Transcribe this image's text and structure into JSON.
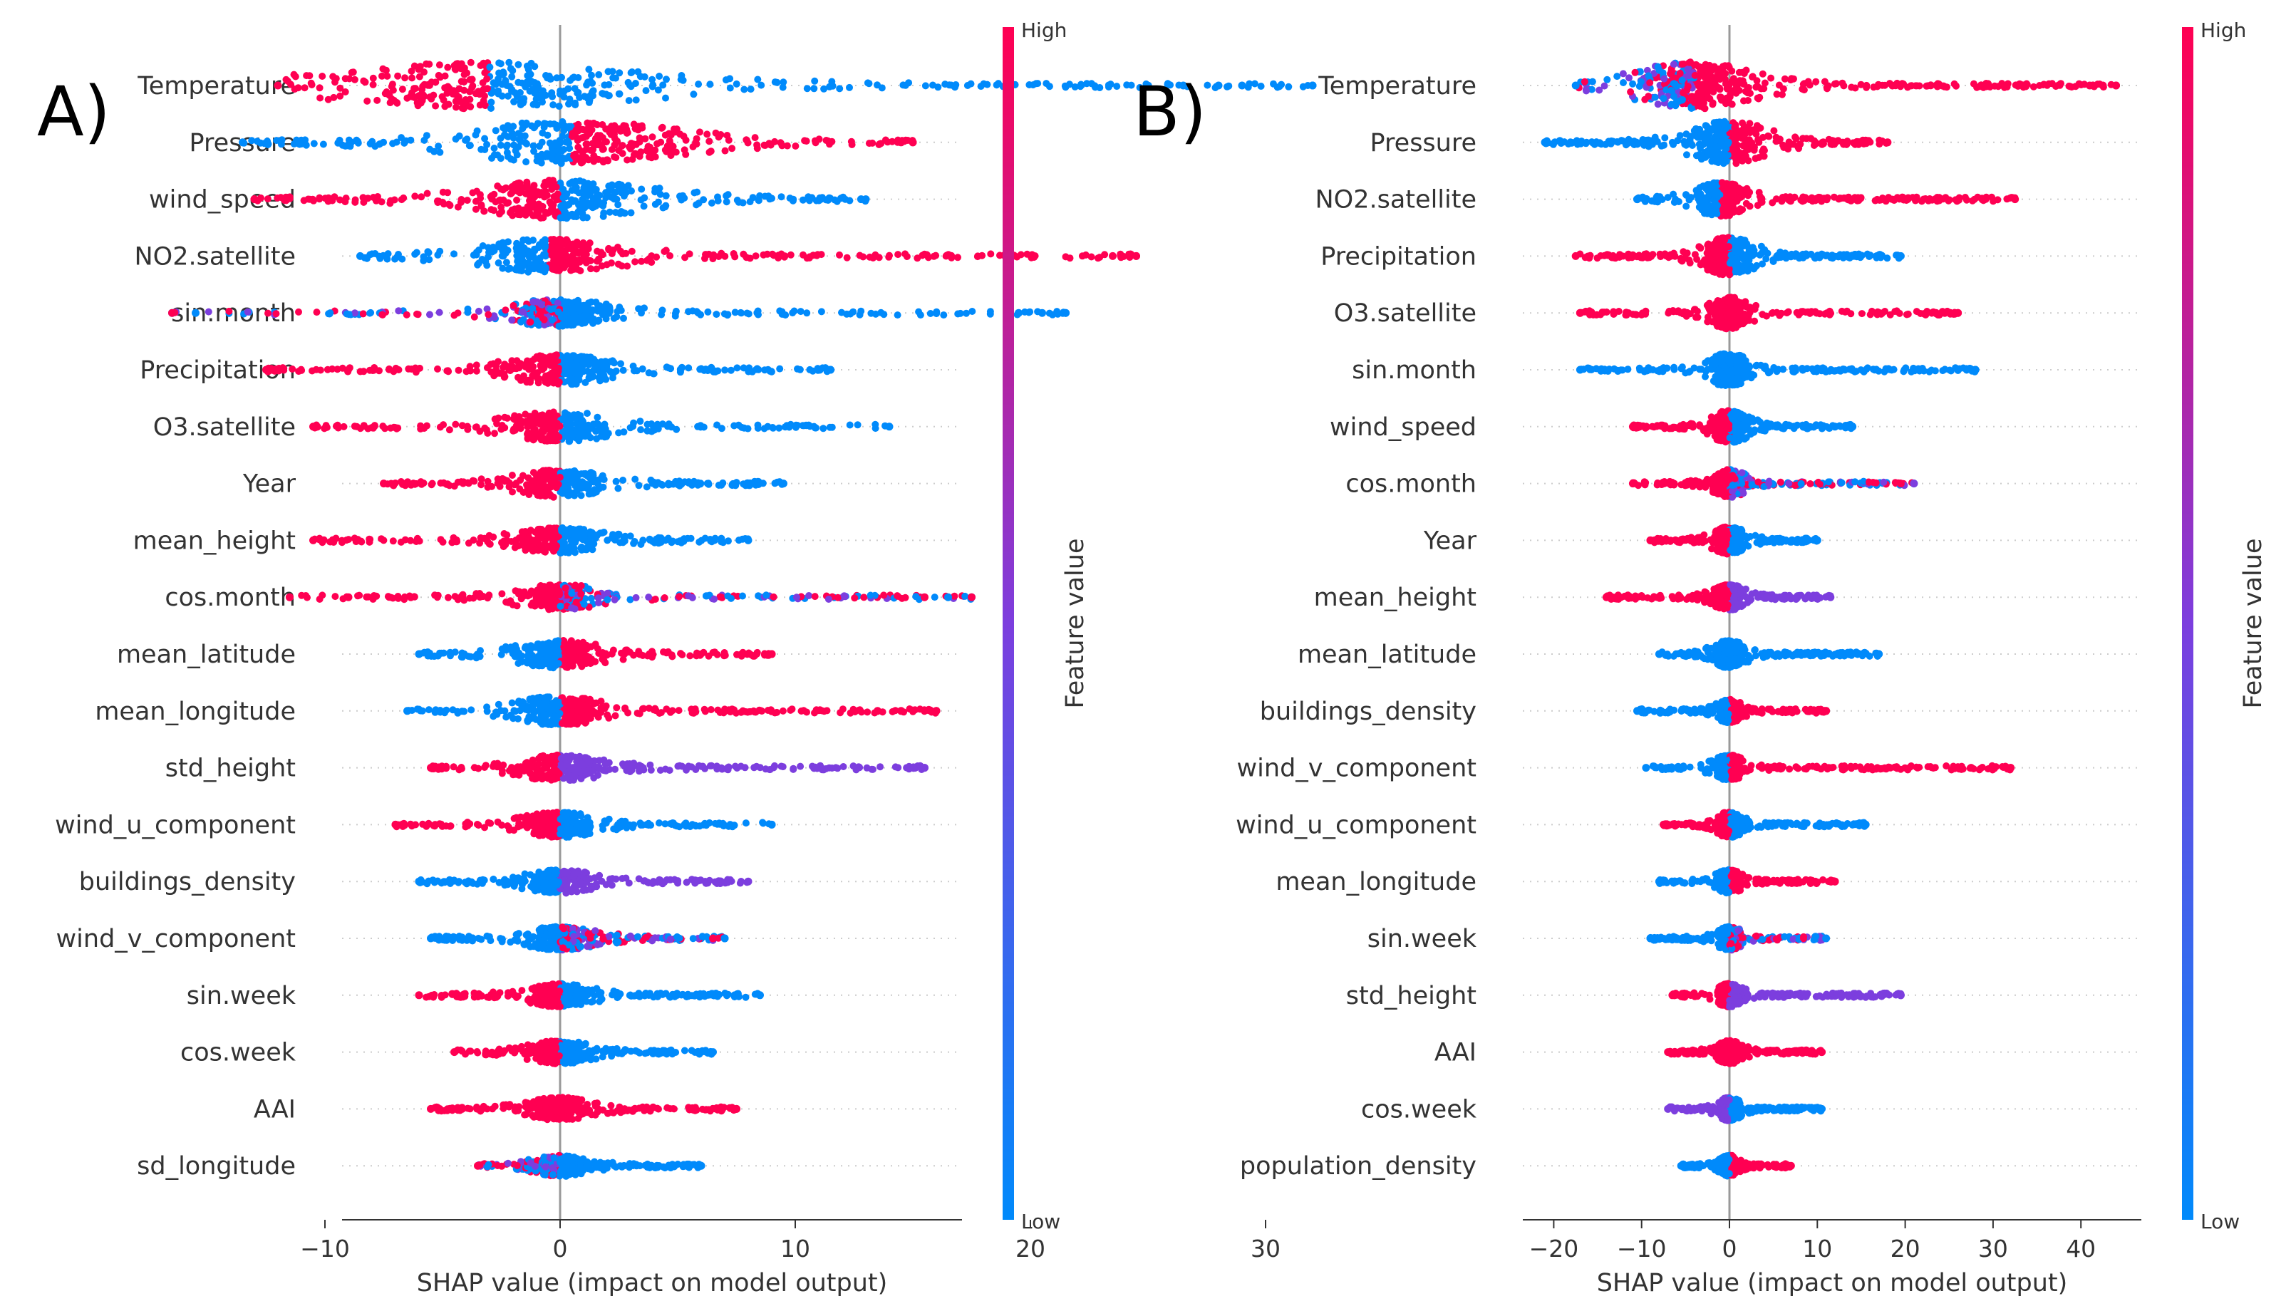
{
  "colors": {
    "low": "#008afb",
    "mid": "#7c3ede",
    "high": "#ff0052",
    "axis": "#333333",
    "zero_line": "#999999",
    "row_guide": "#cccccc"
  },
  "chart_data": [
    {
      "type": "scatter",
      "subtype": "shap_beeswarm",
      "panel_label": "A)",
      "xlabel": "SHAP value (impact on model output)",
      "xticks": [
        -10,
        0,
        10,
        20,
        30
      ],
      "xtick_labels": [
        "−10",
        "0",
        "10",
        "20",
        "30"
      ],
      "xlim": [
        -19,
        34.5
      ],
      "colorbar": {
        "label": "Feature value",
        "high": "High",
        "low": "Low"
      },
      "features": [
        {
          "name": "Temperature",
          "min": -12,
          "max": 32,
          "spread": 9,
          "center": -3,
          "wide": 1.0,
          "right_color": "low",
          "left_color": "high",
          "right_outliers": [
            26.5,
            28,
            29,
            32
          ]
        },
        {
          "name": "Pressure",
          "min": -13.5,
          "max": 15,
          "spread": 6,
          "center": 0.5,
          "wide": 0.9,
          "right_color": "high",
          "left_color": "low",
          "right_outliers": [
            14.5,
            15
          ]
        },
        {
          "name": "wind_speed",
          "min": -13,
          "max": 13,
          "spread": 5,
          "center": 0,
          "wide": 0.8,
          "right_color": "low",
          "left_color": "high",
          "right_outliers": [
            12.8
          ],
          "left_outliers": [
            -13
          ]
        },
        {
          "name": "NO2.satellite",
          "min": -8.5,
          "max": 24.5,
          "spread": 4,
          "center": -0.5,
          "wide": 0.7,
          "right_color": "high",
          "left_color": "low",
          "right_outliers": [
            23.5,
            24.5
          ]
        },
        {
          "name": "sin.month",
          "min": -16.5,
          "max": 21.5,
          "spread": 3,
          "center": 0,
          "wide": 0.55,
          "right_color": "low",
          "left_color": "mix",
          "right_outliers": [
            19.5,
            20.5,
            21.5
          ],
          "left_outliers": [
            -15.5,
            -16.5
          ]
        },
        {
          "name": "Precipitation",
          "min": -12.5,
          "max": 11.5,
          "spread": 3,
          "center": 0,
          "wide": 0.6,
          "right_color": "low",
          "left_color": "high",
          "right_outliers": [
            11.5
          ]
        },
        {
          "name": "O3.satellite",
          "min": -10.5,
          "max": 14,
          "spread": 3,
          "center": 0,
          "wide": 0.6,
          "right_color": "low",
          "left_color": "high",
          "right_outliers": []
        },
        {
          "name": "Year",
          "min": -7.5,
          "max": 9.5,
          "spread": 2.5,
          "center": 0,
          "wide": 0.55,
          "right_color": "low",
          "left_color": "high",
          "right_outliers": []
        },
        {
          "name": "mean_height",
          "min": -10.5,
          "max": 8,
          "spread": 2.5,
          "center": 0,
          "wide": 0.5,
          "right_color": "low",
          "left_color": "high",
          "right_outliers": []
        },
        {
          "name": "cos.month",
          "min": -11.5,
          "max": 17.5,
          "spread": 2.5,
          "center": 0,
          "wide": 0.5,
          "right_color": "mix",
          "left_color": "high",
          "right_outliers": [
            15.5,
            16.5,
            17.5
          ],
          "left_outliers": [
            -9,
            -11.5
          ]
        },
        {
          "name": "mean_latitude",
          "min": -6,
          "max": 9,
          "spread": 2.5,
          "center": 0,
          "wide": 0.55,
          "right_color": "high",
          "left_color": "low",
          "right_outliers": [
            9
          ]
        },
        {
          "name": "mean_longitude",
          "min": -6.5,
          "max": 16,
          "spread": 2.5,
          "center": 0,
          "wide": 0.6,
          "right_color": "high",
          "left_color": "low",
          "right_outliers": [
            12.5,
            13.5,
            14.5,
            16
          ]
        },
        {
          "name": "std_height",
          "min": -5.5,
          "max": 15.5,
          "spread": 2.5,
          "center": 0,
          "wide": 0.5,
          "right_color": "mid",
          "left_color": "high",
          "right_outliers": [
            15.5
          ]
        },
        {
          "name": "wind_u_component",
          "min": -7,
          "max": 9,
          "spread": 2,
          "center": 0,
          "wide": 0.5,
          "right_color": "low",
          "left_color": "high",
          "right_outliers": [
            9
          ],
          "left_outliers": [
            -7
          ]
        },
        {
          "name": "buildings_density",
          "min": -6,
          "max": 8,
          "spread": 2,
          "center": 0,
          "wide": 0.45,
          "right_color": "mid",
          "left_color": "low",
          "right_outliers": []
        },
        {
          "name": "wind_v_component",
          "min": -5.5,
          "max": 7,
          "spread": 2,
          "center": 0,
          "wide": 0.45,
          "right_color": "mix",
          "left_color": "low",
          "right_outliers": [
            6.5,
            7
          ]
        },
        {
          "name": "sin.week",
          "min": -6,
          "max": 8.5,
          "spread": 1.8,
          "center": 0,
          "wide": 0.45,
          "right_color": "low",
          "left_color": "high",
          "right_outliers": []
        },
        {
          "name": "cos.week",
          "min": -4.5,
          "max": 6.5,
          "spread": 1.8,
          "center": 0,
          "wide": 0.45,
          "right_color": "low",
          "left_color": "high",
          "right_outliers": []
        },
        {
          "name": "AAI",
          "min": -5.5,
          "max": 7.5,
          "spread": 1.8,
          "center": 0,
          "wide": 0.45,
          "right_color": "high",
          "left_color": "high",
          "right_outliers": [
            7.5
          ]
        },
        {
          "name": "sd_longitude",
          "min": -3.5,
          "max": 6,
          "spread": 1.5,
          "center": 0,
          "wide": 0.4,
          "right_color": "low",
          "left_color": "mix",
          "right_outliers": []
        }
      ]
    },
    {
      "type": "scatter",
      "subtype": "shap_beeswarm",
      "panel_label": "B)",
      "xlabel": "SHAP value (impact on model output)",
      "xticks": [
        -20,
        -10,
        0,
        10,
        20,
        30,
        40
      ],
      "xtick_labels": [
        "−20",
        "−10",
        "0",
        "10",
        "20",
        "30",
        "40"
      ],
      "xlim": [
        -24,
        47
      ],
      "colorbar": {
        "label": "Feature value",
        "high": "High",
        "low": "Low"
      },
      "features": [
        {
          "name": "Temperature",
          "min": -17.5,
          "max": 44,
          "spread": 9,
          "center": -4,
          "wide": 1.0,
          "right_color": "high",
          "left_color": "mix",
          "right_outliers": [
            41,
            42.5,
            44
          ]
        },
        {
          "name": "Pressure",
          "min": -21,
          "max": 18,
          "spread": 6,
          "center": 0,
          "wide": 0.9,
          "right_color": "high",
          "left_color": "low",
          "right_outliers": [],
          "left_outliers": [
            -21
          ]
        },
        {
          "name": "NO2.satellite",
          "min": -10.5,
          "max": 32.5,
          "spread": 4,
          "center": -1,
          "wide": 0.7,
          "right_color": "high",
          "left_color": "low",
          "right_outliers": [],
          "left_outliers": [
            -10.5
          ]
        },
        {
          "name": "Precipitation",
          "min": -17.5,
          "max": 19.5,
          "spread": 4,
          "center": 0,
          "wide": 0.8,
          "right_color": "low",
          "left_color": "high",
          "right_outliers": []
        },
        {
          "name": "O3.satellite",
          "min": -17,
          "max": 26,
          "spread": 3,
          "center": 0,
          "wide": 0.65,
          "right_color": "high",
          "left_color": "high",
          "right_outliers": [
            23.5,
            24.5,
            26
          ],
          "left_outliers": [
            -17
          ]
        },
        {
          "name": "sin.month",
          "min": -17,
          "max": 28,
          "spread": 3,
          "center": 0,
          "wide": 0.7,
          "right_color": "low",
          "left_color": "low",
          "right_outliers": [
            28
          ]
        },
        {
          "name": "wind_speed",
          "min": -11,
          "max": 14,
          "spread": 3,
          "center": 0,
          "wide": 0.65,
          "right_color": "low",
          "left_color": "high",
          "right_outliers": [
            12,
            14
          ]
        },
        {
          "name": "cos.month",
          "min": -11,
          "max": 21,
          "spread": 2.5,
          "center": 0,
          "wide": 0.55,
          "right_color": "mix",
          "left_color": "high",
          "right_outliers": [
            19.5,
            21
          ]
        },
        {
          "name": "Year",
          "min": -9,
          "max": 10,
          "spread": 2.5,
          "center": 0,
          "wide": 0.55,
          "right_color": "low",
          "left_color": "high",
          "right_outliers": [],
          "left_outliers": [
            -9
          ]
        },
        {
          "name": "mean_height",
          "min": -14,
          "max": 11.5,
          "spread": 2.5,
          "center": 0,
          "wide": 0.5,
          "right_color": "mid",
          "left_color": "high",
          "right_outliers": []
        },
        {
          "name": "mean_latitude",
          "min": -8,
          "max": 17,
          "spread": 2.5,
          "center": 0,
          "wide": 0.55,
          "right_color": "low",
          "left_color": "low",
          "right_outliers": [
            17
          ]
        },
        {
          "name": "buildings_density",
          "min": -10.5,
          "max": 11,
          "spread": 2,
          "center": 0,
          "wide": 0.45,
          "right_color": "high",
          "left_color": "low",
          "right_outliers": [
            11
          ]
        },
        {
          "name": "wind_v_component",
          "min": -9.5,
          "max": 32,
          "spread": 2.5,
          "center": 0,
          "wide": 0.5,
          "right_color": "high",
          "left_color": "low",
          "right_outliers": [
            27.5,
            30,
            32
          ]
        },
        {
          "name": "wind_u_component",
          "min": -7.5,
          "max": 15.5,
          "spread": 2,
          "center": 0,
          "wide": 0.5,
          "right_color": "low",
          "left_color": "high",
          "right_outliers": [
            15.5
          ]
        },
        {
          "name": "mean_longitude",
          "min": -8,
          "max": 12,
          "spread": 2,
          "center": 0,
          "wide": 0.45,
          "right_color": "high",
          "left_color": "low",
          "right_outliers": [
            12
          ]
        },
        {
          "name": "sin.week",
          "min": -9,
          "max": 11,
          "spread": 2,
          "center": 0,
          "wide": 0.45,
          "right_color": "mix",
          "left_color": "low",
          "right_outliers": [],
          "left_outliers": [
            -9
          ]
        },
        {
          "name": "std_height",
          "min": -6.5,
          "max": 19.5,
          "spread": 2,
          "center": 0,
          "wide": 0.45,
          "right_color": "mid",
          "left_color": "high",
          "right_outliers": [
            19.5
          ]
        },
        {
          "name": "AAI",
          "min": -7,
          "max": 10.5,
          "spread": 2,
          "center": 0,
          "wide": 0.45,
          "right_color": "high",
          "left_color": "high",
          "right_outliers": [
            10.5
          ]
        },
        {
          "name": "cos.week",
          "min": -7,
          "max": 10.5,
          "spread": 1.8,
          "center": 0,
          "wide": 0.45,
          "right_color": "low",
          "left_color": "mid",
          "right_outliers": []
        },
        {
          "name": "population_density",
          "min": -5.5,
          "max": 7,
          "spread": 1.5,
          "center": 0,
          "wide": 0.4,
          "right_color": "high",
          "left_color": "low",
          "right_outliers": []
        }
      ]
    }
  ]
}
